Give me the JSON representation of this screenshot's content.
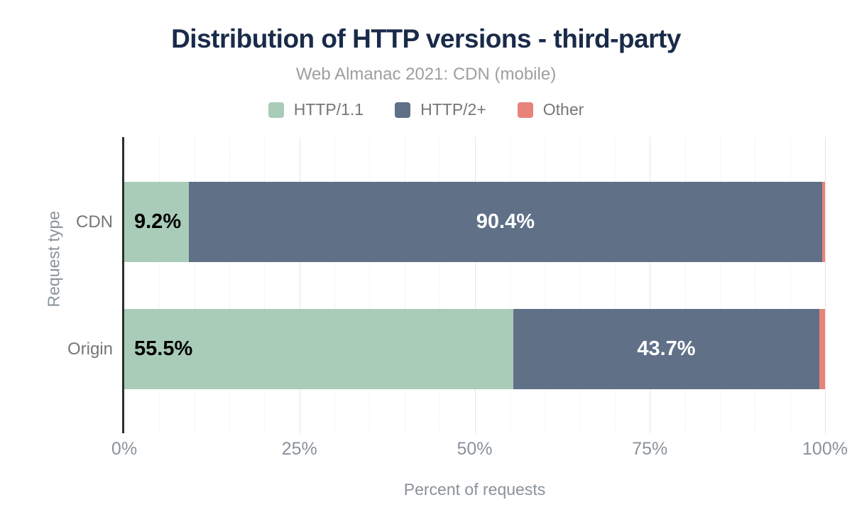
{
  "chart": {
    "title": "Distribution of HTTP versions - third-party",
    "subtitle": "Web Almanac 2021: CDN (mobile)"
  },
  "chart_data": {
    "type": "bar",
    "orientation": "horizontal",
    "stacked": true,
    "title": "Distribution of HTTP versions - third-party",
    "subtitle": "Web Almanac 2021: CDN (mobile)",
    "categories": [
      "CDN",
      "Origin"
    ],
    "series": [
      {
        "name": "HTTP/1.1",
        "color": "#a9ccb8",
        "values": [
          9.2,
          55.5
        ]
      },
      {
        "name": "HTTP/2+",
        "color": "#5f7087",
        "values": [
          90.4,
          43.7
        ]
      },
      {
        "name": "Other",
        "color": "#e8837b",
        "values": [
          0.4,
          0.8
        ]
      }
    ],
    "segment_labels": [
      [
        "9.2%",
        "90.4%",
        ""
      ],
      [
        "55.5%",
        "43.7%",
        ""
      ]
    ],
    "xlabel": "Percent of requests",
    "ylabel": "Request type",
    "x_ticks": [
      "0%",
      "25%",
      "50%",
      "75%",
      "100%"
    ],
    "xlim": [
      0,
      100
    ],
    "legend_position": "top",
    "grid": "vertical, major every 25%, dashed minor every 5%"
  },
  "colors": {
    "title_text": "#1a2b49",
    "subtitle_text": "#9e9e9e",
    "axis_text": "#8a9299",
    "category_text": "#767676",
    "label_on_light_segment": "#000000",
    "label_on_dark_segment": "#ffffff",
    "axis_line": "#2d2d2d",
    "grid_major": "#e5e5e5",
    "grid_minor": "#f0f0f0"
  }
}
